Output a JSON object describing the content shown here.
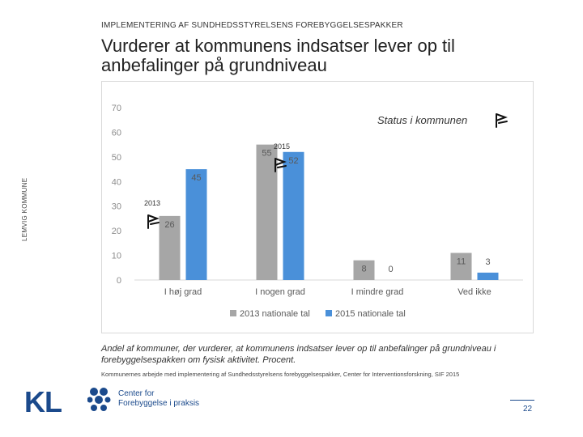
{
  "header": {
    "kicker": "IMPLEMENTERING AF SUNDHEDSSTYRELSENS FOREBYGGELSESPAKKER",
    "title": "Vurderer at kommunens indsatser lever op til anbefalinger på grundniveau",
    "side_label": "LEMVIG KOMMUNE"
  },
  "chart_data": {
    "type": "bar",
    "title": "",
    "xlabel": "",
    "ylabel": "",
    "ylim": [
      0,
      70
    ],
    "yticks": [
      0,
      10,
      20,
      30,
      40,
      50,
      60,
      70
    ],
    "categories": [
      "I høj grad",
      "I nogen grad",
      "I mindre grad",
      "Ved ikke"
    ],
    "series": [
      {
        "name": "2013 nationale tal",
        "values": [
          26,
          55,
          8,
          11
        ],
        "color": "#a6a6a6"
      },
      {
        "name": "2015 nationale tal",
        "values": [
          45,
          52,
          0,
          3
        ],
        "color": "#4a90d9"
      }
    ],
    "legend_position": "bottom",
    "annotations": {
      "status_label": "Status i kommunen",
      "year_2013": "2013",
      "year_2015": "2015"
    }
  },
  "caption": "Andel af kommuner, der vurderer, at kommunens indsatser lever op til anbefalinger på grundniveau i forebyggelsespakken om fysisk aktivitet. Procent.",
  "source": "Kommunernes arbejde med implementering af Sundhedsstyrelsens forebyggelsespakker, Center for Interventionsforskning, SIF 2015",
  "footer": {
    "kl_logo": "KL",
    "center_line1": "Center for",
    "center_line2": "Forebyggelse i praksis",
    "page_number": "22"
  },
  "colors": {
    "brand": "#1b4a8c",
    "series_2013": "#a6a6a6",
    "series_2015": "#4a90d9"
  }
}
